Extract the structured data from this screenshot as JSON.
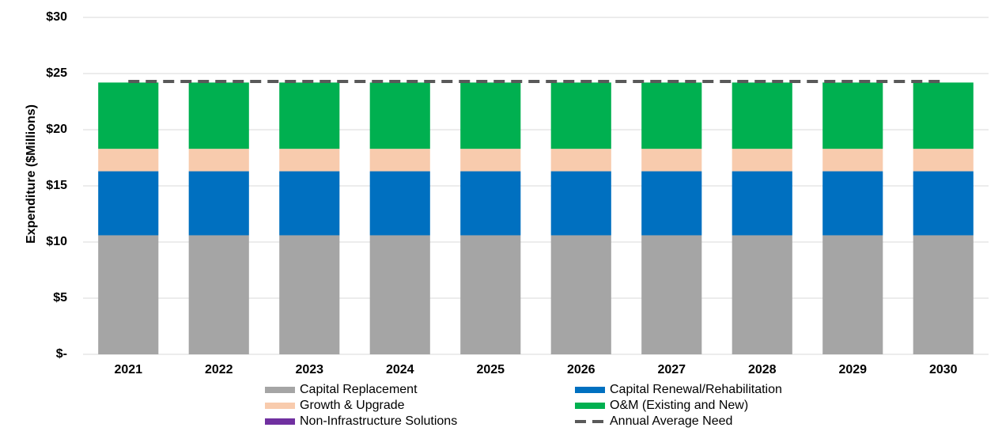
{
  "chart_data": {
    "type": "bar",
    "stacked": true,
    "y_label": "Expenditure ($Millions)",
    "categories": [
      "2021",
      "2022",
      "2023",
      "2024",
      "2025",
      "2026",
      "2027",
      "2028",
      "2029",
      "2030"
    ],
    "series": [
      {
        "name": "Capital Replacement",
        "color": "#a5a5a5",
        "values": [
          10.6,
          10.6,
          10.6,
          10.6,
          10.6,
          10.6,
          10.6,
          10.6,
          10.6,
          10.6
        ]
      },
      {
        "name": "Capital Renewal/Rehabilitation",
        "color": "#0070c0",
        "values": [
          5.7,
          5.7,
          5.7,
          5.7,
          5.7,
          5.7,
          5.7,
          5.7,
          5.7,
          5.7
        ]
      },
      {
        "name": "Growth & Upgrade",
        "color": "#f8cbad",
        "values": [
          2.0,
          2.0,
          2.0,
          2.0,
          2.0,
          2.0,
          2.0,
          2.0,
          2.0,
          2.0
        ]
      },
      {
        "name": "O&M (Existing and New)",
        "color": "#00b050",
        "values": [
          5.9,
          5.9,
          5.9,
          5.9,
          5.9,
          5.9,
          5.9,
          5.9,
          5.9,
          5.9
        ]
      },
      {
        "name": "Non-Infrastructure Solutions",
        "color": "#7030a0",
        "values": [
          0,
          0,
          0,
          0,
          0,
          0,
          0,
          0,
          0,
          0
        ]
      },
      {
        "name": "Annual Average Need",
        "color": "#595959",
        "type": "line",
        "style": "dashed",
        "values": [
          24.3,
          24.3,
          24.3,
          24.3,
          24.3,
          24.3,
          24.3,
          24.3,
          24.3,
          24.3
        ]
      }
    ],
    "ylim": [
      0,
      30
    ],
    "yticks": [
      {
        "value": 0,
        "label": "$-"
      },
      {
        "value": 5,
        "label": "$5"
      },
      {
        "value": 10,
        "label": "$10"
      },
      {
        "value": 15,
        "label": "$15"
      },
      {
        "value": 20,
        "label": "$20"
      },
      {
        "value": 25,
        "label": "$25"
      },
      {
        "value": 30,
        "label": "$30"
      }
    ],
    "grid": true,
    "legend": "bottom"
  }
}
